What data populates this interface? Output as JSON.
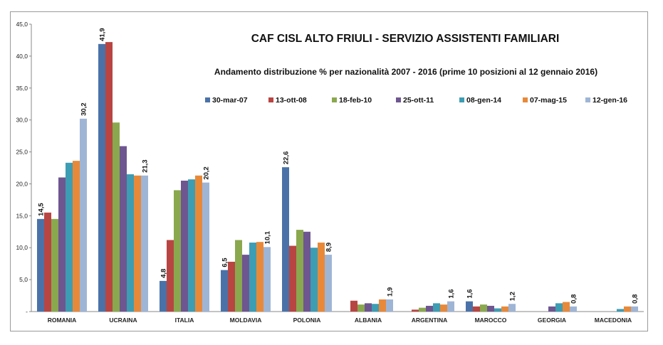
{
  "chart_data": {
    "type": "bar",
    "title": "CAF CISL ALTO FRIULI - SERVIZIO ASSISTENTI FAMILIARI",
    "subtitle": "Andamento distribuzione % per nazionalità 2007 - 2016 (prime 10 posizioni al 12 gennaio 2016)",
    "xlabel": "",
    "ylabel": "",
    "ylim": [
      0,
      45
    ],
    "y_ticks": [
      "-",
      "5,0",
      "10,0",
      "15,0",
      "20,0",
      "25,0",
      "30,0",
      "35,0",
      "40,0",
      "45,0"
    ],
    "grid": false,
    "legend_position": "top-right",
    "categories": [
      "ROMANIA",
      "UCRAINA",
      "ITALIA",
      "MOLDAVIA",
      "POLONIA",
      "ALBANIA",
      "ARGENTINA",
      "MAROCCO",
      "GEORGIA",
      "MACEDONIA"
    ],
    "series": [
      {
        "name": "30-mar-07",
        "color": "#4a72a8",
        "values": [
          14.5,
          41.9,
          4.8,
          6.5,
          22.6,
          0,
          0,
          1.6,
          0,
          0
        ]
      },
      {
        "name": "13-ott-08",
        "color": "#b84542",
        "values": [
          15.5,
          42.2,
          11.2,
          7.8,
          10.3,
          1.7,
          0.3,
          0.8,
          0,
          0
        ]
      },
      {
        "name": "18-feb-10",
        "color": "#8aa84e",
        "values": [
          14.5,
          29.6,
          19.0,
          11.2,
          12.8,
          1.1,
          0.6,
          1.1,
          0,
          0
        ]
      },
      {
        "name": "25-ott-11",
        "color": "#6e5690",
        "values": [
          21.0,
          25.9,
          20.5,
          8.9,
          12.5,
          1.3,
          0.9,
          0.9,
          0.8,
          0
        ]
      },
      {
        "name": "08-gen-14",
        "color": "#3d9db3",
        "values": [
          23.3,
          21.5,
          20.7,
          10.8,
          10.0,
          1.2,
          1.3,
          0.5,
          1.3,
          0.4
        ]
      },
      {
        "name": "07-mag-15",
        "color": "#e8893a",
        "values": [
          23.6,
          21.3,
          21.3,
          10.9,
          10.8,
          1.9,
          1.1,
          0.8,
          1.5,
          0.8
        ]
      },
      {
        "name": "12-gen-16",
        "color": "#9fb5d6",
        "values": [
          30.2,
          21.3,
          20.2,
          10.1,
          8.9,
          1.9,
          1.6,
          1.2,
          0.8,
          0.8
        ]
      }
    ],
    "data_labels": [
      {
        "category": 0,
        "series": 0,
        "text": "14,5"
      },
      {
        "category": 0,
        "series": 6,
        "text": "30,2"
      },
      {
        "category": 1,
        "series": 0,
        "text": "41,9"
      },
      {
        "category": 1,
        "series": 6,
        "text": "21,3"
      },
      {
        "category": 2,
        "series": 0,
        "text": "4,8"
      },
      {
        "category": 2,
        "series": 6,
        "text": "20,2"
      },
      {
        "category": 3,
        "series": 0,
        "text": "6,5"
      },
      {
        "category": 3,
        "series": 6,
        "text": "10,1"
      },
      {
        "category": 4,
        "series": 0,
        "text": "22,6"
      },
      {
        "category": 4,
        "series": 6,
        "text": "8,9"
      },
      {
        "category": 5,
        "series": 6,
        "text": "1,9"
      },
      {
        "category": 6,
        "series": 6,
        "text": "1,6"
      },
      {
        "category": 7,
        "series": 0,
        "text": "1,6"
      },
      {
        "category": 7,
        "series": 6,
        "text": "1,2"
      },
      {
        "category": 8,
        "series": 6,
        "text": "0,8"
      },
      {
        "category": 9,
        "series": 6,
        "text": "0,8"
      }
    ]
  }
}
